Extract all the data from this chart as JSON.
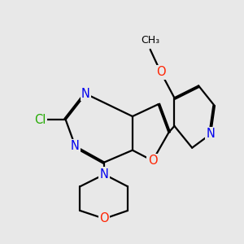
{
  "bg_color": "#e8e8e8",
  "bond_color": "#000000",
  "bond_width": 1.6,
  "dbo": 0.055,
  "fs": 10.5,
  "colors": {
    "N": "#0000ee",
    "O": "#ff2200",
    "Cl": "#22aa00",
    "C": "#000000"
  }
}
